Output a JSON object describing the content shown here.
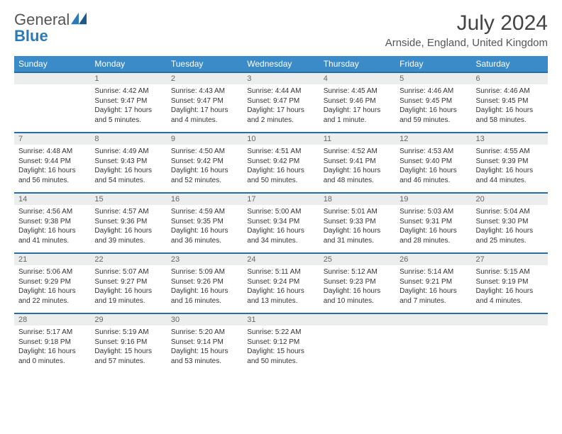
{
  "logo": {
    "text1": "General",
    "text2": "Blue"
  },
  "title": "July 2024",
  "location": "Arnside, England, United Kingdom",
  "colors": {
    "header_bg": "#3b8bc9",
    "row_border": "#2a6ea8",
    "daynum_bg": "#eceded"
  },
  "dayNames": [
    "Sunday",
    "Monday",
    "Tuesday",
    "Wednesday",
    "Thursday",
    "Friday",
    "Saturday"
  ],
  "weeks": [
    [
      {
        "n": "",
        "lines": []
      },
      {
        "n": "1",
        "lines": [
          "Sunrise: 4:42 AM",
          "Sunset: 9:47 PM",
          "Daylight: 17 hours",
          "and 5 minutes."
        ]
      },
      {
        "n": "2",
        "lines": [
          "Sunrise: 4:43 AM",
          "Sunset: 9:47 PM",
          "Daylight: 17 hours",
          "and 4 minutes."
        ]
      },
      {
        "n": "3",
        "lines": [
          "Sunrise: 4:44 AM",
          "Sunset: 9:47 PM",
          "Daylight: 17 hours",
          "and 2 minutes."
        ]
      },
      {
        "n": "4",
        "lines": [
          "Sunrise: 4:45 AM",
          "Sunset: 9:46 PM",
          "Daylight: 17 hours",
          "and 1 minute."
        ]
      },
      {
        "n": "5",
        "lines": [
          "Sunrise: 4:46 AM",
          "Sunset: 9:45 PM",
          "Daylight: 16 hours",
          "and 59 minutes."
        ]
      },
      {
        "n": "6",
        "lines": [
          "Sunrise: 4:46 AM",
          "Sunset: 9:45 PM",
          "Daylight: 16 hours",
          "and 58 minutes."
        ]
      }
    ],
    [
      {
        "n": "7",
        "lines": [
          "Sunrise: 4:48 AM",
          "Sunset: 9:44 PM",
          "Daylight: 16 hours",
          "and 56 minutes."
        ]
      },
      {
        "n": "8",
        "lines": [
          "Sunrise: 4:49 AM",
          "Sunset: 9:43 PM",
          "Daylight: 16 hours",
          "and 54 minutes."
        ]
      },
      {
        "n": "9",
        "lines": [
          "Sunrise: 4:50 AM",
          "Sunset: 9:42 PM",
          "Daylight: 16 hours",
          "and 52 minutes."
        ]
      },
      {
        "n": "10",
        "lines": [
          "Sunrise: 4:51 AM",
          "Sunset: 9:42 PM",
          "Daylight: 16 hours",
          "and 50 minutes."
        ]
      },
      {
        "n": "11",
        "lines": [
          "Sunrise: 4:52 AM",
          "Sunset: 9:41 PM",
          "Daylight: 16 hours",
          "and 48 minutes."
        ]
      },
      {
        "n": "12",
        "lines": [
          "Sunrise: 4:53 AM",
          "Sunset: 9:40 PM",
          "Daylight: 16 hours",
          "and 46 minutes."
        ]
      },
      {
        "n": "13",
        "lines": [
          "Sunrise: 4:55 AM",
          "Sunset: 9:39 PM",
          "Daylight: 16 hours",
          "and 44 minutes."
        ]
      }
    ],
    [
      {
        "n": "14",
        "lines": [
          "Sunrise: 4:56 AM",
          "Sunset: 9:38 PM",
          "Daylight: 16 hours",
          "and 41 minutes."
        ]
      },
      {
        "n": "15",
        "lines": [
          "Sunrise: 4:57 AM",
          "Sunset: 9:36 PM",
          "Daylight: 16 hours",
          "and 39 minutes."
        ]
      },
      {
        "n": "16",
        "lines": [
          "Sunrise: 4:59 AM",
          "Sunset: 9:35 PM",
          "Daylight: 16 hours",
          "and 36 minutes."
        ]
      },
      {
        "n": "17",
        "lines": [
          "Sunrise: 5:00 AM",
          "Sunset: 9:34 PM",
          "Daylight: 16 hours",
          "and 34 minutes."
        ]
      },
      {
        "n": "18",
        "lines": [
          "Sunrise: 5:01 AM",
          "Sunset: 9:33 PM",
          "Daylight: 16 hours",
          "and 31 minutes."
        ]
      },
      {
        "n": "19",
        "lines": [
          "Sunrise: 5:03 AM",
          "Sunset: 9:31 PM",
          "Daylight: 16 hours",
          "and 28 minutes."
        ]
      },
      {
        "n": "20",
        "lines": [
          "Sunrise: 5:04 AM",
          "Sunset: 9:30 PM",
          "Daylight: 16 hours",
          "and 25 minutes."
        ]
      }
    ],
    [
      {
        "n": "21",
        "lines": [
          "Sunrise: 5:06 AM",
          "Sunset: 9:29 PM",
          "Daylight: 16 hours",
          "and 22 minutes."
        ]
      },
      {
        "n": "22",
        "lines": [
          "Sunrise: 5:07 AM",
          "Sunset: 9:27 PM",
          "Daylight: 16 hours",
          "and 19 minutes."
        ]
      },
      {
        "n": "23",
        "lines": [
          "Sunrise: 5:09 AM",
          "Sunset: 9:26 PM",
          "Daylight: 16 hours",
          "and 16 minutes."
        ]
      },
      {
        "n": "24",
        "lines": [
          "Sunrise: 5:11 AM",
          "Sunset: 9:24 PM",
          "Daylight: 16 hours",
          "and 13 minutes."
        ]
      },
      {
        "n": "25",
        "lines": [
          "Sunrise: 5:12 AM",
          "Sunset: 9:23 PM",
          "Daylight: 16 hours",
          "and 10 minutes."
        ]
      },
      {
        "n": "26",
        "lines": [
          "Sunrise: 5:14 AM",
          "Sunset: 9:21 PM",
          "Daylight: 16 hours",
          "and 7 minutes."
        ]
      },
      {
        "n": "27",
        "lines": [
          "Sunrise: 5:15 AM",
          "Sunset: 9:19 PM",
          "Daylight: 16 hours",
          "and 4 minutes."
        ]
      }
    ],
    [
      {
        "n": "28",
        "lines": [
          "Sunrise: 5:17 AM",
          "Sunset: 9:18 PM",
          "Daylight: 16 hours",
          "and 0 minutes."
        ]
      },
      {
        "n": "29",
        "lines": [
          "Sunrise: 5:19 AM",
          "Sunset: 9:16 PM",
          "Daylight: 15 hours",
          "and 57 minutes."
        ]
      },
      {
        "n": "30",
        "lines": [
          "Sunrise: 5:20 AM",
          "Sunset: 9:14 PM",
          "Daylight: 15 hours",
          "and 53 minutes."
        ]
      },
      {
        "n": "31",
        "lines": [
          "Sunrise: 5:22 AM",
          "Sunset: 9:12 PM",
          "Daylight: 15 hours",
          "and 50 minutes."
        ]
      },
      {
        "n": "",
        "lines": []
      },
      {
        "n": "",
        "lines": []
      },
      {
        "n": "",
        "lines": []
      }
    ]
  ]
}
